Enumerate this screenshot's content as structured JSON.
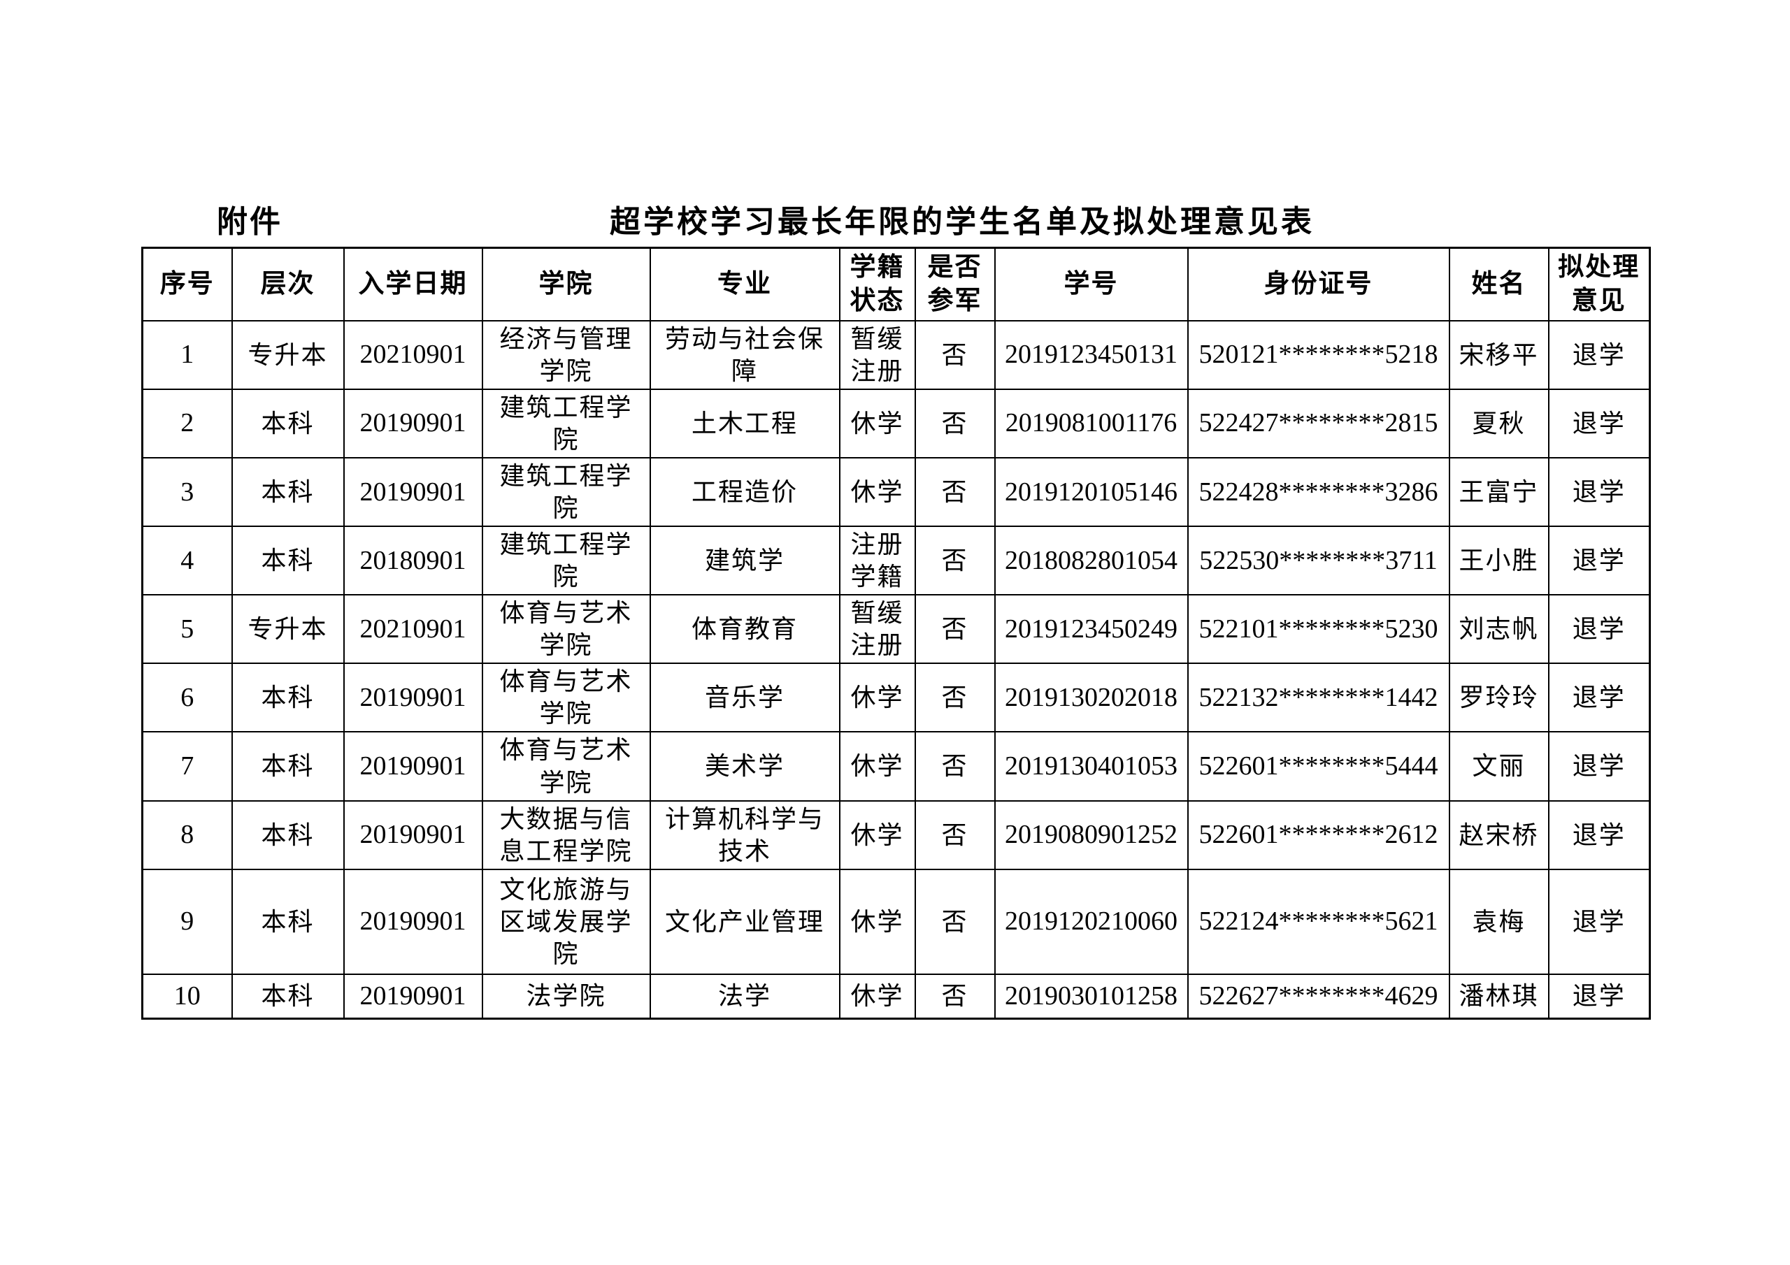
{
  "page": {
    "attachment_label": "附件",
    "title": "超学校学习最长年限的学生名单及拟处理意见表",
    "background_color": "#ffffff",
    "text_color": "#000000",
    "border_color": "#000000"
  },
  "table": {
    "headers": [
      "序号",
      "层次",
      "入学日期",
      "学院",
      "专业",
      "学籍\n状态",
      "是否\n参军",
      "学号",
      "身份证号",
      "姓名",
      "拟处理\n意见"
    ],
    "rows": [
      [
        "1",
        "专升本",
        "20210901",
        "经济与管理\n学院",
        "劳动与社会保\n障",
        "暂缓\n注册",
        "否",
        "2019123450131",
        "520121********5218",
        "宋移平",
        "退学"
      ],
      [
        "2",
        "本科",
        "20190901",
        "建筑工程学\n院",
        "土木工程",
        "休学",
        "否",
        "2019081001176",
        "522427********2815",
        "夏秋",
        "退学"
      ],
      [
        "3",
        "本科",
        "20190901",
        "建筑工程学\n院",
        "工程造价",
        "休学",
        "否",
        "2019120105146",
        "522428********3286",
        "王富宁",
        "退学"
      ],
      [
        "4",
        "本科",
        "20180901",
        "建筑工程学\n院",
        "建筑学",
        "注册\n学籍",
        "否",
        "2018082801054",
        "522530********3711",
        "王小胜",
        "退学"
      ],
      [
        "5",
        "专升本",
        "20210901",
        "体育与艺术\n学院",
        "体育教育",
        "暂缓\n注册",
        "否",
        "2019123450249",
        "522101********5230",
        "刘志帆",
        "退学"
      ],
      [
        "6",
        "本科",
        "20190901",
        "体育与艺术\n学院",
        "音乐学",
        "休学",
        "否",
        "2019130202018",
        "522132********1442",
        "罗玲玲",
        "退学"
      ],
      [
        "7",
        "本科",
        "20190901",
        "体育与艺术\n学院",
        "美术学",
        "休学",
        "否",
        "2019130401053",
        "522601********5444",
        "文丽",
        "退学"
      ],
      [
        "8",
        "本科",
        "20190901",
        "大数据与信\n息工程学院",
        "计算机科学与\n技术",
        "休学",
        "否",
        "2019080901252",
        "522601********2612",
        "赵宋桥",
        "退学"
      ],
      [
        "9",
        "本科",
        "20190901",
        "文化旅游与\n区域发展学\n院",
        "文化产业管理",
        "休学",
        "否",
        "2019120210060",
        "522124********5621",
        "袁梅",
        "退学"
      ],
      [
        "10",
        "本科",
        "20190901",
        "法学院",
        "法学",
        "休学",
        "否",
        "2019030101258",
        "522627********4629",
        "潘林琪",
        "退学"
      ]
    ]
  }
}
